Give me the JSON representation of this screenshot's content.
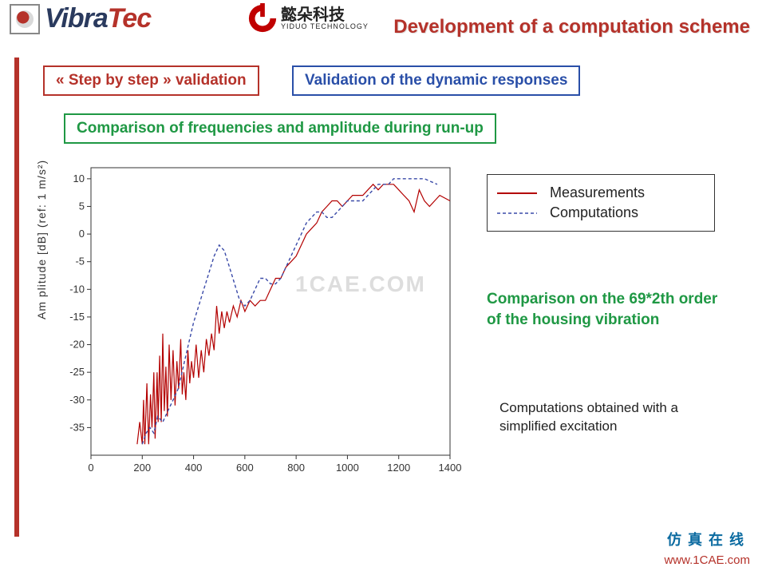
{
  "header": {
    "vibratec_prefix": "Vibra",
    "vibratec_suffix": "Tec",
    "yiduo_cn": "懿朵科技",
    "yiduo_en": "YIDUO TECHNOLOGY",
    "title": "Development of a computation scheme"
  },
  "boxes": {
    "step": "« Step by step » validation",
    "validation": "Validation of the dynamic responses",
    "comparison": "Comparison of frequencies and amplitude during run-up"
  },
  "chart": {
    "type": "line",
    "ylabel": "Am plitude [dB] (ref: 1 m/s²)",
    "xlim": [
      0,
      1400
    ],
    "ylim": [
      -40,
      12
    ],
    "xticks": [
      0,
      200,
      400,
      600,
      800,
      1000,
      1200,
      1400
    ],
    "yticks": [
      -35,
      -30,
      -25,
      -20,
      -15,
      -10,
      -5,
      0,
      5,
      10
    ],
    "grid_color": "#d9d9d9",
    "axis_color": "#333333",
    "background": "#ffffff",
    "tick_fontsize": 13,
    "series": [
      {
        "name": "Measurements",
        "color": "#b30000",
        "dash": "solid",
        "width": 1.2,
        "data": [
          [
            180,
            -38
          ],
          [
            190,
            -34
          ],
          [
            200,
            -38
          ],
          [
            205,
            -30
          ],
          [
            210,
            -38
          ],
          [
            218,
            -27
          ],
          [
            225,
            -38
          ],
          [
            232,
            -29
          ],
          [
            238,
            -35
          ],
          [
            245,
            -25
          ],
          [
            250,
            -37
          ],
          [
            258,
            -25
          ],
          [
            262,
            -34
          ],
          [
            268,
            -22
          ],
          [
            274,
            -34
          ],
          [
            280,
            -18
          ],
          [
            286,
            -32
          ],
          [
            292,
            -24
          ],
          [
            298,
            -33
          ],
          [
            305,
            -20
          ],
          [
            312,
            -30
          ],
          [
            320,
            -21
          ],
          [
            328,
            -31
          ],
          [
            335,
            -23
          ],
          [
            342,
            -28
          ],
          [
            350,
            -19
          ],
          [
            356,
            -29
          ],
          [
            362,
            -25
          ],
          [
            370,
            -30
          ],
          [
            378,
            -21
          ],
          [
            385,
            -27
          ],
          [
            392,
            -23
          ],
          [
            400,
            -26
          ],
          [
            410,
            -20
          ],
          [
            420,
            -26
          ],
          [
            430,
            -21
          ],
          [
            440,
            -25
          ],
          [
            450,
            -19
          ],
          [
            460,
            -22
          ],
          [
            470,
            -18
          ],
          [
            480,
            -21
          ],
          [
            490,
            -13
          ],
          [
            500,
            -18
          ],
          [
            510,
            -14
          ],
          [
            520,
            -17
          ],
          [
            530,
            -14
          ],
          [
            540,
            -16
          ],
          [
            555,
            -13
          ],
          [
            570,
            -15
          ],
          [
            585,
            -12
          ],
          [
            600,
            -14
          ],
          [
            620,
            -12
          ],
          [
            640,
            -13
          ],
          [
            660,
            -12
          ],
          [
            680,
            -12
          ],
          [
            700,
            -10
          ],
          [
            720,
            -8
          ],
          [
            740,
            -8
          ],
          [
            760,
            -6
          ],
          [
            780,
            -5
          ],
          [
            800,
            -4
          ],
          [
            820,
            -2
          ],
          [
            840,
            0
          ],
          [
            860,
            1
          ],
          [
            880,
            2
          ],
          [
            900,
            4
          ],
          [
            920,
            5
          ],
          [
            940,
            6
          ],
          [
            960,
            6
          ],
          [
            980,
            5
          ],
          [
            1000,
            6
          ],
          [
            1020,
            7
          ],
          [
            1040,
            7
          ],
          [
            1060,
            7
          ],
          [
            1080,
            8
          ],
          [
            1100,
            9
          ],
          [
            1120,
            8
          ],
          [
            1140,
            9
          ],
          [
            1160,
            9
          ],
          [
            1180,
            9
          ],
          [
            1200,
            8
          ],
          [
            1220,
            7
          ],
          [
            1240,
            6
          ],
          [
            1260,
            4
          ],
          [
            1280,
            8
          ],
          [
            1300,
            6
          ],
          [
            1320,
            5
          ],
          [
            1340,
            6
          ],
          [
            1360,
            7
          ],
          [
            1400,
            6
          ]
        ]
      },
      {
        "name": "Computations",
        "color": "#3a4aa8",
        "dash": "4,3",
        "width": 1.4,
        "data": [
          [
            200,
            -38
          ],
          [
            215,
            -36
          ],
          [
            230,
            -35
          ],
          [
            245,
            -36
          ],
          [
            260,
            -33
          ],
          [
            280,
            -34
          ],
          [
            300,
            -32
          ],
          [
            320,
            -30
          ],
          [
            340,
            -28
          ],
          [
            360,
            -24
          ],
          [
            380,
            -20
          ],
          [
            400,
            -16
          ],
          [
            420,
            -13
          ],
          [
            440,
            -10
          ],
          [
            460,
            -7
          ],
          [
            480,
            -4
          ],
          [
            500,
            -2
          ],
          [
            520,
            -3
          ],
          [
            540,
            -6
          ],
          [
            560,
            -9
          ],
          [
            580,
            -12
          ],
          [
            600,
            -13
          ],
          [
            620,
            -12
          ],
          [
            640,
            -10
          ],
          [
            660,
            -8
          ],
          [
            680,
            -8
          ],
          [
            700,
            -9
          ],
          [
            720,
            -9
          ],
          [
            740,
            -8
          ],
          [
            760,
            -6
          ],
          [
            780,
            -4
          ],
          [
            800,
            -2
          ],
          [
            820,
            0
          ],
          [
            840,
            2
          ],
          [
            860,
            3
          ],
          [
            880,
            4
          ],
          [
            900,
            4
          ],
          [
            920,
            3
          ],
          [
            940,
            3
          ],
          [
            960,
            4
          ],
          [
            980,
            5
          ],
          [
            1000,
            6
          ],
          [
            1020,
            6
          ],
          [
            1040,
            6
          ],
          [
            1060,
            6
          ],
          [
            1080,
            7
          ],
          [
            1100,
            8
          ],
          [
            1120,
            9
          ],
          [
            1140,
            9
          ],
          [
            1160,
            9
          ],
          [
            1180,
            10
          ],
          [
            1200,
            10
          ],
          [
            1220,
            10
          ],
          [
            1240,
            10
          ],
          [
            1260,
            10
          ],
          [
            1300,
            10
          ],
          [
            1350,
            9
          ]
        ]
      }
    ]
  },
  "legend": {
    "items": [
      "Measurements",
      "Computations"
    ]
  },
  "notes": {
    "green": "Comparison on the 69*2th order of the housing vibration",
    "black": "Computations obtained with a simplified excitation"
  },
  "footer": {
    "cn": "仿真在线",
    "url": "www.1CAE.com"
  },
  "watermark": "1CAE.COM",
  "colors": {
    "red": "#b5322a",
    "blue": "#2a4fa8",
    "green": "#1f9844"
  }
}
